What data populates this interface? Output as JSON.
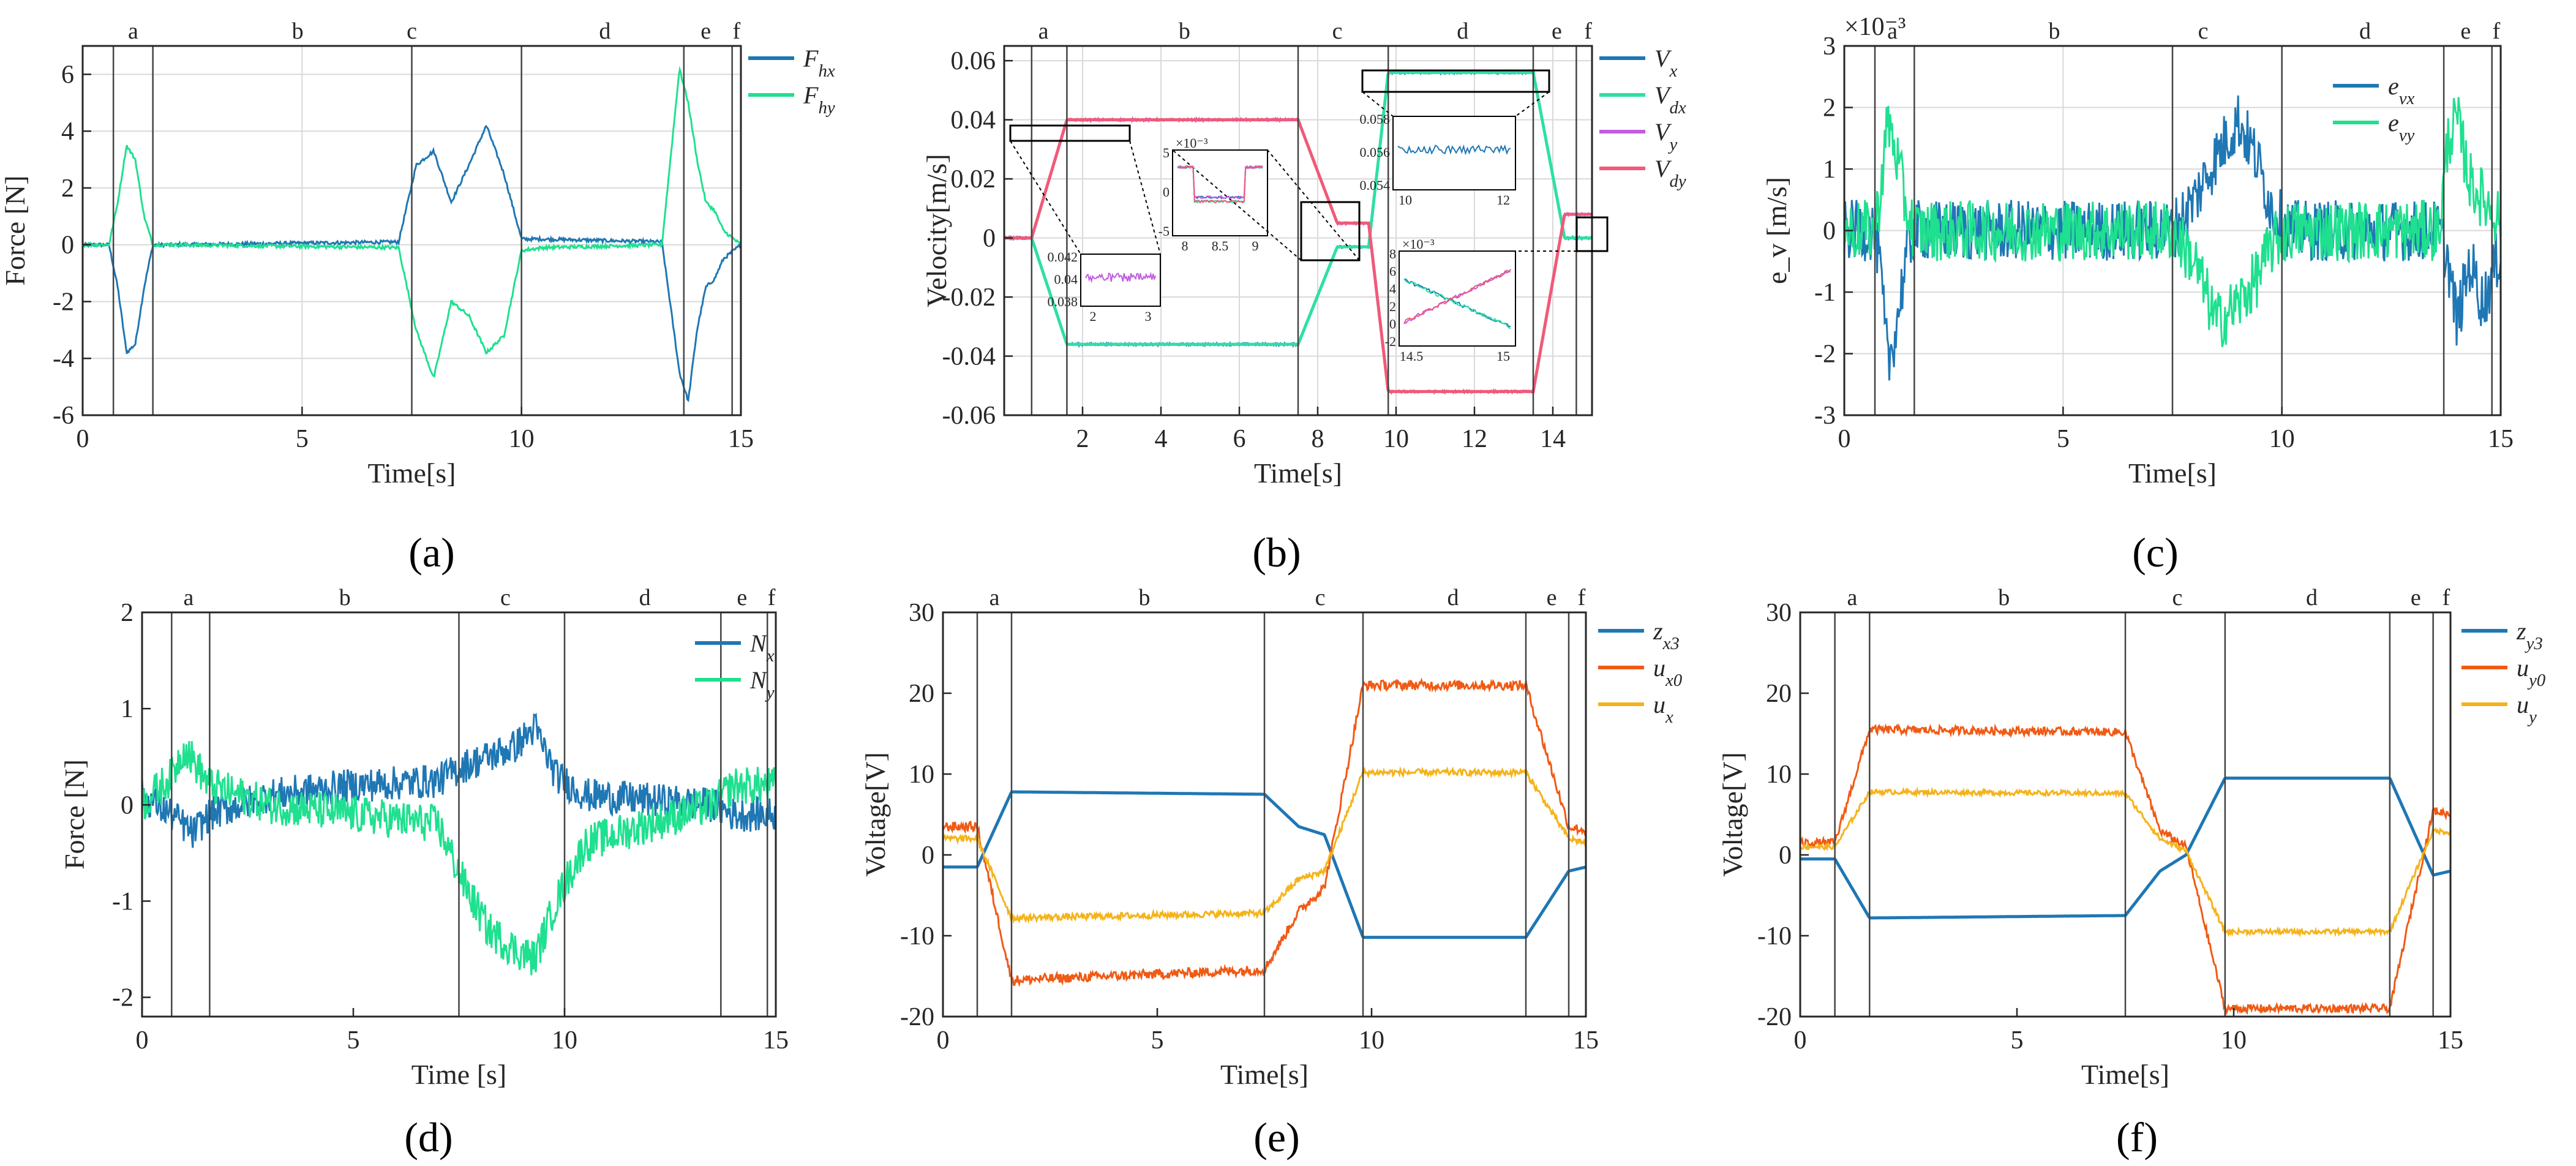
{
  "chart_data": [
    {
      "id": "a",
      "type": "line",
      "panel_label": "(a)",
      "xlabel": "Time[s]",
      "ylabel": "Force [N]",
      "xlim": [
        0,
        15
      ],
      "ylim": [
        -6,
        7
      ],
      "xticks": [
        0,
        5,
        10,
        15
      ],
      "yticks": [
        -6,
        -4,
        -2,
        0,
        2,
        4,
        6
      ],
      "grid": true,
      "phase_lines": [
        0.7,
        1.6,
        7.5,
        10.0,
        13.7,
        14.8
      ],
      "phase_labels": [
        {
          "t": "a",
          "x": 1.15
        },
        {
          "t": "b",
          "x": 4.9
        },
        {
          "t": "c",
          "x": 7.5
        },
        {
          "t": "d",
          "x": 11.9
        },
        {
          "t": "e",
          "x": 14.2
        },
        {
          "t": "f",
          "x": 14.9
        }
      ],
      "legend": [
        "F_hx",
        "F_hy"
      ],
      "legend_position": "top-right-outside",
      "series": [
        {
          "name": "F_hx",
          "color": "#1F77B4",
          "noise": 0.06,
          "x": [
            0,
            0.6,
            0.8,
            1.0,
            1.2,
            1.4,
            1.6,
            2,
            7.2,
            7.6,
            8.0,
            8.4,
            8.8,
            9.2,
            9.6,
            10.0,
            10.5,
            13.2,
            13.6,
            13.8,
            14.0,
            14.2,
            14.4,
            14.6,
            15
          ],
          "y": [
            0,
            0,
            -1.5,
            -3.8,
            -3.5,
            -1.5,
            0,
            0,
            0.1,
            2.8,
            3.3,
            1.5,
            2.8,
            4.2,
            2.5,
            0.2,
            0.2,
            0.1,
            -4.5,
            -5.5,
            -3.0,
            -1.5,
            -1.2,
            -0.5,
            0
          ]
        },
        {
          "name": "F_hy",
          "color": "#1FE08F",
          "noise": 0.06,
          "x": [
            0,
            0.6,
            0.8,
            1.0,
            1.2,
            1.4,
            1.6,
            2,
            7.2,
            7.6,
            8.0,
            8.4,
            8.8,
            9.2,
            9.6,
            10.0,
            10.5,
            13.2,
            13.6,
            13.8,
            14.0,
            14.2,
            14.4,
            14.6,
            15
          ],
          "y": [
            0,
            0,
            1.5,
            3.5,
            3.0,
            1.0,
            0,
            0,
            -0.1,
            -3.0,
            -4.7,
            -2.0,
            -2.5,
            -3.8,
            -3.2,
            -0.2,
            -0.1,
            0,
            6.2,
            5.0,
            3.0,
            1.5,
            1.2,
            0.5,
            0
          ]
        }
      ]
    },
    {
      "id": "b",
      "type": "line",
      "panel_label": "(b)",
      "xlabel": "Time[s]",
      "ylabel": "Velocity[m/s]",
      "xlim": [
        0,
        15
      ],
      "ylim": [
        -0.06,
        0.065
      ],
      "xticks": [
        2,
        4,
        6,
        8,
        10,
        12,
        14
      ],
      "yticks": [
        -0.06,
        -0.04,
        -0.02,
        0,
        0.02,
        0.04,
        0.06
      ],
      "grid": true,
      "phase_lines": [
        0.7,
        1.6,
        7.5,
        9.8,
        13.5,
        14.6
      ],
      "phase_labels": [
        {
          "t": "a",
          "x": 1.0
        },
        {
          "t": "b",
          "x": 4.6
        },
        {
          "t": "c",
          "x": 8.5
        },
        {
          "t": "d",
          "x": 11.7
        },
        {
          "t": "e",
          "x": 14.1
        },
        {
          "t": "f",
          "x": 14.9
        }
      ],
      "legend": [
        "V_x",
        "V_dx",
        "V_y",
        "V_dy"
      ],
      "legend_position": "top-right-outside",
      "series": [
        {
          "name": "V_x",
          "color": "#1F77B4",
          "noise": 0.0004,
          "x": [
            0,
            0.7,
            1.6,
            7.5,
            8.5,
            9.3,
            9.8,
            13.5,
            14.3,
            15
          ],
          "y": [
            0,
            0,
            -0.036,
            -0.036,
            -0.003,
            -0.003,
            0.056,
            0.056,
            0,
            0
          ]
        },
        {
          "name": "V_dx",
          "color": "#2EDFA6",
          "noise": 0,
          "x": [
            0,
            0.7,
            1.6,
            7.5,
            8.5,
            9.3,
            9.8,
            13.5,
            14.3,
            15
          ],
          "y": [
            0,
            0,
            -0.036,
            -0.036,
            -0.003,
            -0.003,
            0.056,
            0.056,
            0,
            0
          ]
        },
        {
          "name": "V_y",
          "color": "#C15BE0",
          "noise": 0.0004,
          "x": [
            0,
            0.7,
            1.6,
            7.5,
            8.5,
            9.3,
            9.8,
            13.5,
            14.3,
            15
          ],
          "y": [
            0,
            0,
            0.04,
            0.04,
            0.005,
            0.005,
            -0.052,
            -0.052,
            0.008,
            0.008
          ]
        },
        {
          "name": "V_dy",
          "color": "#F05A78",
          "noise": 0,
          "x": [
            0,
            0.7,
            1.6,
            7.5,
            8.5,
            9.3,
            9.8,
            13.5,
            14.3,
            15
          ],
          "y": [
            0,
            0,
            0.04,
            0.04,
            0.005,
            0.005,
            -0.052,
            -0.052,
            0.008,
            0.008
          ]
        }
      ],
      "insets": [
        {
          "yticks": [
            "0.042",
            "0.04",
            "0.038"
          ],
          "xticks": [
            "2",
            "3"
          ]
        },
        {
          "exponent": "×10⁻³",
          "yticks": [
            "5",
            "0",
            "-5"
          ],
          "xticks": [
            "8",
            "8.5",
            "9"
          ]
        },
        {
          "yticks": [
            "0.058",
            "0.056",
            "0.054"
          ],
          "xticks": [
            "10",
            "12"
          ]
        },
        {
          "exponent": "×10⁻³",
          "yticks": [
            "8",
            "6",
            "4",
            "2",
            "0",
            "-2"
          ],
          "xticks": [
            "14.5",
            "15"
          ]
        }
      ]
    },
    {
      "id": "c",
      "type": "line",
      "panel_label": "(c)",
      "xlabel": "Time[s]",
      "ylabel": "e_v [m/s]",
      "exponent": "×10⁻³",
      "xlim": [
        0,
        15
      ],
      "ylim": [
        -3,
        3
      ],
      "xticks": [
        0,
        5,
        10,
        15
      ],
      "yticks": [
        -3,
        -2,
        -1,
        0,
        1,
        2,
        3
      ],
      "grid": true,
      "phase_lines": [
        0.7,
        1.6,
        7.5,
        10.0,
        13.7,
        14.8
      ],
      "phase_labels": [
        {
          "t": "a",
          "x": 1.1
        },
        {
          "t": "b",
          "x": 4.8
        },
        {
          "t": "c",
          "x": 8.2
        },
        {
          "t": "d",
          "x": 11.9
        },
        {
          "t": "e",
          "x": 14.2
        },
        {
          "t": "f",
          "x": 14.9
        }
      ],
      "legend": [
        "e_vx",
        "e_vy"
      ],
      "legend_position": "top-right",
      "series": [
        {
          "name": "e_vx",
          "color": "#1F77B4",
          "noise": 0.5,
          "x": [
            0,
            0.7,
            0.8,
            1.0,
            1.2,
            1.4,
            1.6,
            2,
            7.5,
            8.0,
            8.5,
            9.0,
            9.4,
            9.8,
            10.2,
            13.6,
            13.8,
            14.0,
            14.3,
            14.6,
            15
          ],
          "y": [
            0,
            0,
            -0.5,
            -2.2,
            -1.5,
            -0.5,
            0,
            0,
            0,
            0.5,
            1.2,
            1.8,
            1.2,
            0.3,
            0,
            0,
            -0.5,
            -1.5,
            -0.5,
            -1.2,
            -0.3
          ]
        },
        {
          "name": "e_vy",
          "color": "#1FE08F",
          "noise": 0.5,
          "x": [
            0,
            0.7,
            0.8,
            1.0,
            1.2,
            1.4,
            1.6,
            2,
            7.5,
            8.0,
            8.5,
            9.0,
            9.4,
            9.8,
            10.2,
            13.6,
            13.8,
            14.0,
            14.3,
            14.6,
            15
          ],
          "y": [
            0,
            0,
            0.5,
            1.8,
            1.2,
            0.4,
            0,
            0,
            0,
            -0.5,
            -1.5,
            -1.2,
            -0.8,
            -0.2,
            0,
            0,
            1.5,
            1.8,
            0.8,
            0.5,
            0.2
          ]
        }
      ]
    },
    {
      "id": "d",
      "type": "line",
      "panel_label": "(d)",
      "xlabel": "Time [s]",
      "ylabel": "Force [N]",
      "xlim": [
        0,
        15
      ],
      "ylim": [
        -2.2,
        2
      ],
      "xticks": [
        0,
        5,
        10,
        15
      ],
      "yticks": [
        -2,
        -1,
        0,
        1,
        2
      ],
      "grid": false,
      "phase_lines": [
        0.7,
        1.6,
        7.5,
        10.0,
        13.7,
        14.8
      ],
      "phase_labels": [
        {
          "t": "a",
          "x": 1.1
        },
        {
          "t": "b",
          "x": 4.8
        },
        {
          "t": "c",
          "x": 8.6
        },
        {
          "t": "d",
          "x": 11.9
        },
        {
          "t": "e",
          "x": 14.2
        },
        {
          "t": "f",
          "x": 14.9
        }
      ],
      "legend": [
        "N_x",
        "N_y"
      ],
      "legend_position": "top-right",
      "series": [
        {
          "name": "N_x",
          "color": "#1F77B4",
          "noise": 0.18,
          "x": [
            0,
            0.7,
            1.2,
            1.6,
            3,
            5,
            7,
            7.6,
            8.2,
            8.8,
            9.3,
            9.8,
            10.5,
            12,
            13.5,
            14,
            15
          ],
          "y": [
            0.1,
            -0.1,
            -0.3,
            -0.1,
            0.1,
            0.2,
            0.25,
            0.4,
            0.5,
            0.6,
            0.8,
            0.3,
            0.1,
            0.05,
            0,
            -0.1,
            -0.1
          ]
        },
        {
          "name": "N_y",
          "color": "#1FE08F",
          "noise": 0.2,
          "x": [
            0,
            0.7,
            1.0,
            1.6,
            3,
            5,
            7,
            7.6,
            8.2,
            8.8,
            9.3,
            9.8,
            10.5,
            12,
            13.5,
            14,
            15
          ],
          "y": [
            0,
            0.3,
            0.6,
            0.2,
            0,
            -0.1,
            -0.2,
            -0.8,
            -1.3,
            -1.5,
            -1.6,
            -1.0,
            -0.4,
            -0.2,
            0,
            0.2,
            0.2
          ]
        }
      ]
    },
    {
      "id": "e",
      "type": "line",
      "panel_label": "(e)",
      "xlabel": "Time[s]",
      "ylabel": "Voltage[V]",
      "xlim": [
        0,
        15
      ],
      "ylim": [
        -20,
        30
      ],
      "xticks": [
        0,
        5,
        10,
        15
      ],
      "yticks": [
        -20,
        -10,
        0,
        10,
        20,
        30
      ],
      "grid": false,
      "phase_lines": [
        0.8,
        1.6,
        7.5,
        9.8,
        13.6,
        14.6
      ],
      "phase_labels": [
        {
          "t": "a",
          "x": 1.2
        },
        {
          "t": "b",
          "x": 4.7
        },
        {
          "t": "c",
          "x": 8.8
        },
        {
          "t": "d",
          "x": 11.9
        },
        {
          "t": "e",
          "x": 14.2
        },
        {
          "t": "f",
          "x": 14.9
        }
      ],
      "legend": [
        "z_x3",
        "u_x0",
        "u_x"
      ],
      "legend_position": "top-right-outside",
      "series": [
        {
          "name": "z_x3",
          "color": "#1F77B4",
          "noise": 0,
          "x": [
            0,
            0.8,
            1.6,
            7.5,
            8.3,
            8.9,
            9.8,
            13.6,
            14.6,
            15
          ],
          "y": [
            -1.5,
            -1.5,
            7.8,
            7.5,
            3.5,
            2.5,
            -10.2,
            -10.2,
            -2,
            -1.5
          ]
        },
        {
          "name": "u_x0",
          "color": "#F05A14",
          "noise": 0.6,
          "x": [
            0,
            0.8,
            1.6,
            7.5,
            8.3,
            8.9,
            9.8,
            13.6,
            14.6,
            15
          ],
          "y": [
            3.5,
            3.5,
            -15.5,
            -14.2,
            -7,
            -4,
            21,
            21,
            3.5,
            3
          ]
        },
        {
          "name": "u_x",
          "color": "#F5B31A",
          "noise": 0.4,
          "x": [
            0,
            0.8,
            1.6,
            7.5,
            8.3,
            8.9,
            9.8,
            13.6,
            14.6,
            15
          ],
          "y": [
            2,
            2,
            -7.8,
            -7.2,
            -3,
            -2,
            10.2,
            10.2,
            2,
            1.5
          ]
        }
      ]
    },
    {
      "id": "f",
      "type": "line",
      "panel_label": "(f)",
      "xlabel": "Time[s]",
      "ylabel": "Voltage[V]",
      "xlim": [
        0,
        15
      ],
      "ylim": [
        -20,
        30
      ],
      "xticks": [
        0,
        5,
        10,
        15
      ],
      "yticks": [
        -20,
        -10,
        0,
        10,
        20,
        30
      ],
      "grid": false,
      "phase_lines": [
        0.8,
        1.6,
        7.5,
        9.8,
        13.6,
        14.6
      ],
      "phase_labels": [
        {
          "t": "a",
          "x": 1.2
        },
        {
          "t": "b",
          "x": 4.7
        },
        {
          "t": "c",
          "x": 8.7
        },
        {
          "t": "d",
          "x": 11.8
        },
        {
          "t": "e",
          "x": 14.2
        },
        {
          "t": "f",
          "x": 14.9
        }
      ],
      "legend": [
        "z_y3",
        "u_y0",
        "u_y"
      ],
      "legend_position": "top-right-outside",
      "series": [
        {
          "name": "z_y3",
          "color": "#1F77B4",
          "noise": 0,
          "x": [
            0,
            0.8,
            1.6,
            7.5,
            8.3,
            8.9,
            9.8,
            13.6,
            14.6,
            15
          ],
          "y": [
            -0.5,
            -0.5,
            -7.8,
            -7.5,
            -2,
            0,
            9.5,
            9.5,
            -2.5,
            -2
          ]
        },
        {
          "name": "u_y0",
          "color": "#F05A14",
          "noise": 0.5,
          "x": [
            0,
            0.8,
            1.6,
            7.5,
            8.3,
            8.9,
            9.8,
            13.6,
            14.6,
            15
          ],
          "y": [
            1.5,
            1.5,
            15.5,
            15.2,
            3,
            1,
            -19,
            -19,
            5.5,
            5
          ]
        },
        {
          "name": "u_y",
          "color": "#F5B31A",
          "noise": 0.3,
          "x": [
            0,
            0.8,
            1.6,
            7.5,
            8.3,
            8.9,
            9.8,
            13.6,
            14.6,
            15
          ],
          "y": [
            1,
            1,
            7.8,
            7.6,
            2,
            0.5,
            -9.5,
            -9.5,
            3,
            2.8
          ]
        }
      ]
    }
  ]
}
